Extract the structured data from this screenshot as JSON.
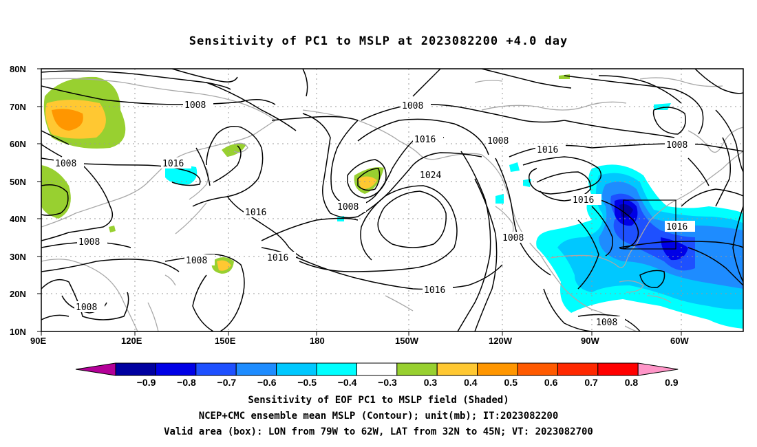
{
  "title": "Sensitivity of PC1 to MSLP at 2023082200 +4.0 day",
  "lat_labels": [
    "80N",
    "70N",
    "60N",
    "50N",
    "40N",
    "30N",
    "20N",
    "10N"
  ],
  "lon_labels": [
    "90E",
    "120E",
    "150E",
    "180",
    "150W",
    "120W",
    "90W",
    "60W"
  ],
  "contour_labels": [
    "1008",
    "1008",
    "1008",
    "1008",
    "1008",
    "1008",
    "1008",
    "1008",
    "1008",
    "1016",
    "1016",
    "1016",
    "1016",
    "1016",
    "1016",
    "1016",
    "1016",
    "1024"
  ],
  "colorbar": {
    "labels": [
      "-0.9",
      "-0.8",
      "-0.7",
      "-0.6",
      "-0.5",
      "-0.4",
      "-0.3",
      "0.3",
      "0.4",
      "0.5",
      "0.6",
      "0.7",
      "0.8",
      "0.9"
    ],
    "colors": [
      "#b40098",
      "#0000a0",
      "#0000e6",
      "#1e50ff",
      "#1e8cff",
      "#00c8ff",
      "#00ffff",
      "#ffffff",
      "#98d030",
      "#ffc832",
      "#ff9600",
      "#ff5a00",
      "#ff2800",
      "#ff0000",
      "#ff96c8"
    ]
  },
  "captions": {
    "line1": "Sensitivity of EOF PC1 to MSLP field (Shaded)",
    "line2": "NCEP+CMC ensemble mean MSLP (Contour); unit(mb); IT:2023082200",
    "line3": "Valid area (box): LON from 79W to 62W, LAT from 32N to 45N; VT: 2023082700"
  },
  "valid_box": {
    "lon_min": -79,
    "lon_max": -62,
    "lat_min": 32,
    "lat_max": 45
  }
}
